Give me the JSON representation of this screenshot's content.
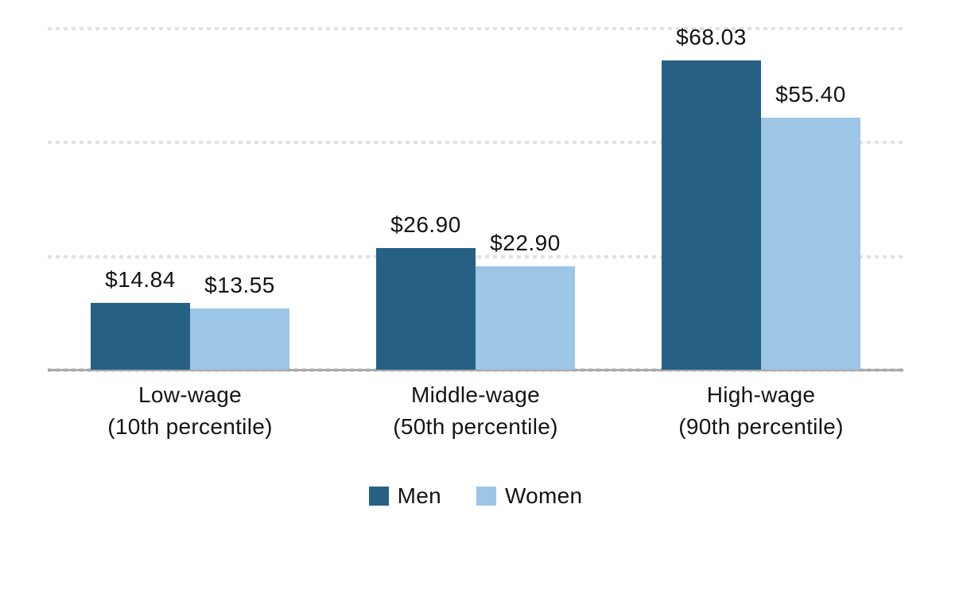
{
  "chart_data": {
    "type": "bar",
    "title": "",
    "xlabel": "",
    "ylabel": "",
    "categories": [
      {
        "line1": "Low-wage",
        "line2": "(10th percentile)"
      },
      {
        "line1": "Middle-wage",
        "line2": "(50th percentile)"
      },
      {
        "line1": "High-wage",
        "line2": "(90th percentile)"
      }
    ],
    "series": [
      {
        "name": "Men",
        "color": "#266184",
        "values": [
          14.84,
          26.9,
          68.03
        ],
        "labels": [
          "$14.84",
          "$26.90",
          "$68.03"
        ]
      },
      {
        "name": "Women",
        "color": "#9cc5e6",
        "values": [
          13.55,
          22.9,
          55.4
        ],
        "labels": [
          "$13.55",
          "$22.90",
          "$55.40"
        ]
      }
    ],
    "value_prefix": "$",
    "ylim": [
      0,
      78
    ],
    "gridlines": [
      0,
      25,
      50,
      75
    ],
    "grid_style": "dotted",
    "legend_position": "bottom",
    "colors": {
      "grid": "#e1e1e1",
      "axis": "#a9a9a9",
      "text": "#141414",
      "background": "#ffffff"
    }
  }
}
